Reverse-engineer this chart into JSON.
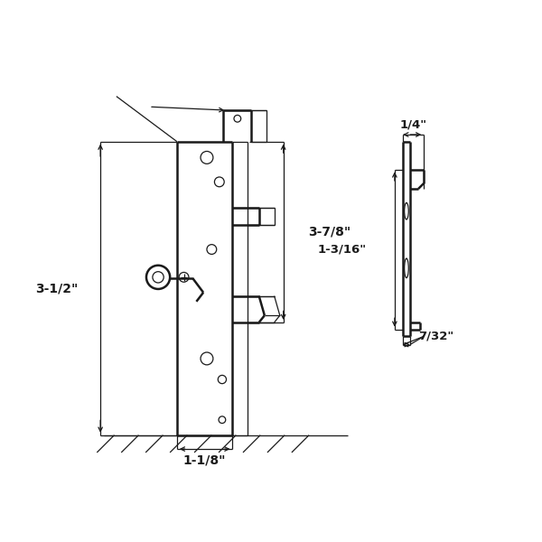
{
  "bg_color": "#ffffff",
  "line_color": "#1a1a1a",
  "lw_main": 1.8,
  "lw_thin": 0.9,
  "lw_dim": 0.9,
  "fig_size": [
    6.0,
    6.0
  ],
  "dpi": 100,
  "annotations": {
    "dim_3half": "3-1/2\"",
    "dim_3_7_8": "3-7/8\"",
    "dim_1_1_8": "1-1/8\"",
    "dim_7_32": "7/32\"",
    "dim_1_3_16": "1-3/16\"",
    "dim_1_4": "1/4\""
  }
}
